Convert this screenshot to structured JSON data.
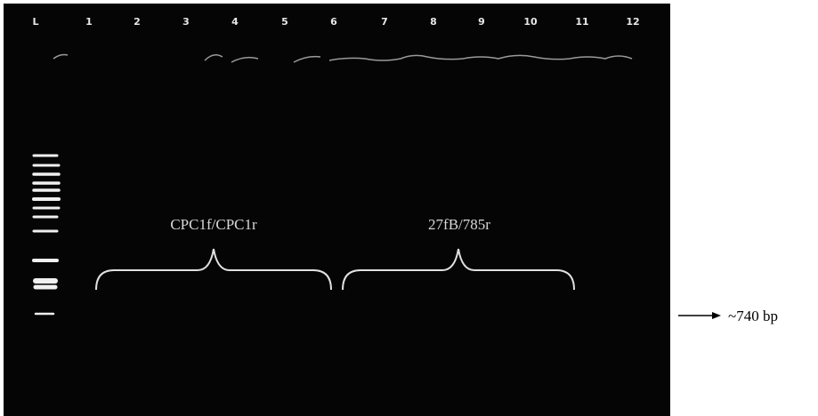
{
  "lanes": [
    "L",
    "1",
    "2",
    "3",
    "4",
    "5",
    "6",
    "7",
    "8",
    "9",
    "10",
    "11",
    "12"
  ],
  "primer_groups": [
    "CPC1f/CPC1r",
    "27fB/785r"
  ],
  "band_marker": "~740 bp"
}
